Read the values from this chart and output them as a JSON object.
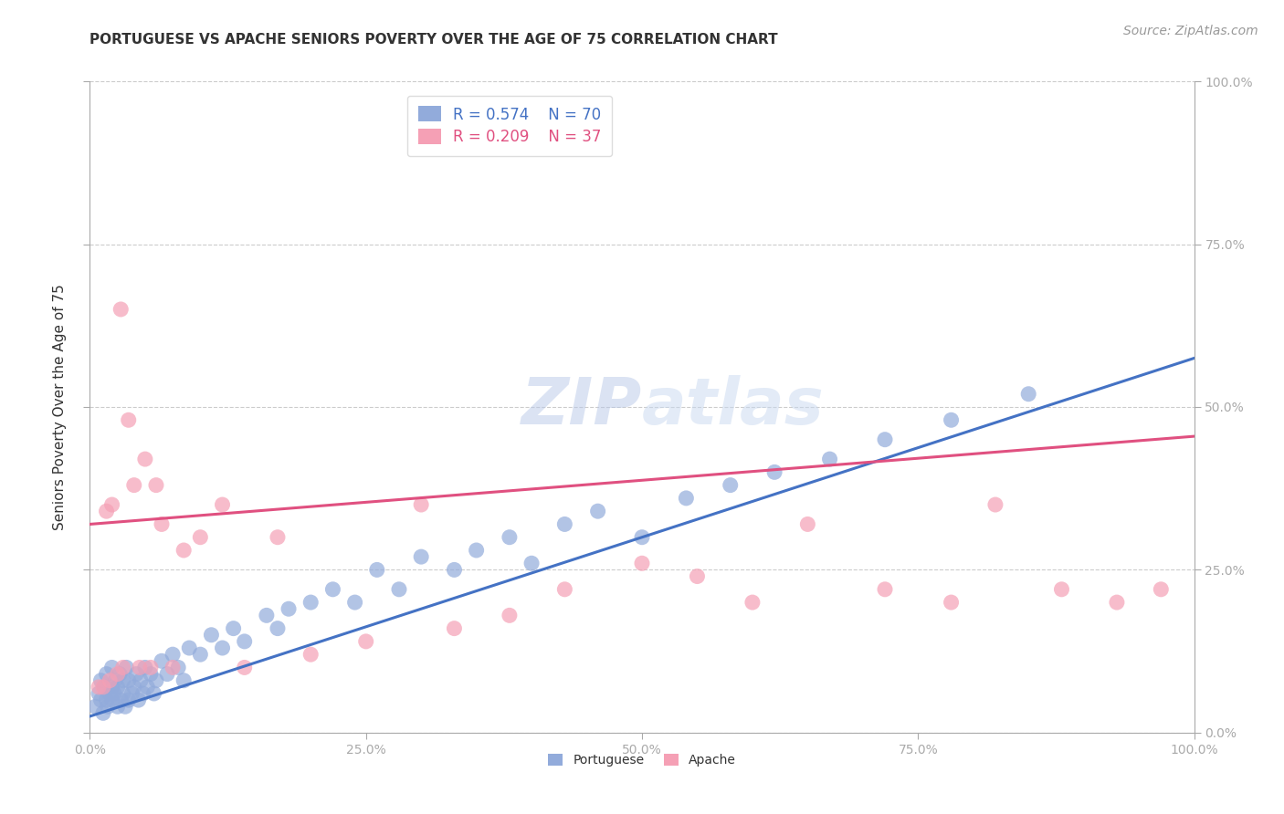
{
  "title": "PORTUGUESE VS APACHE SENIORS POVERTY OVER THE AGE OF 75 CORRELATION CHART",
  "source": "Source: ZipAtlas.com",
  "ylabel": "Seniors Poverty Over the Age of 75",
  "xlabel": "",
  "portuguese_R": 0.574,
  "portuguese_N": 70,
  "apache_R": 0.209,
  "apache_N": 37,
  "portuguese_color": "#92ABDB",
  "apache_color": "#F5A0B5",
  "portuguese_line_color": "#4472C4",
  "apache_line_color": "#E05080",
  "watermark_color": "#D0DCF0",
  "xlim": [
    0.0,
    1.0
  ],
  "ylim": [
    0.0,
    1.0
  ],
  "xticks": [
    0.0,
    0.25,
    0.5,
    0.75,
    1.0
  ],
  "yticks": [
    0.0,
    0.25,
    0.5,
    0.75,
    1.0
  ],
  "xticklabels": [
    "0.0%",
    "25.0%",
    "50.0%",
    "75.0%",
    "100.0%"
  ],
  "yticklabels": [
    "0.0%",
    "25.0%",
    "50.0%",
    "75.0%",
    "100.0%"
  ],
  "grid_color": "#CCCCCC",
  "background_color": "#FFFFFF",
  "title_fontsize": 11,
  "axis_label_fontsize": 11,
  "tick_fontsize": 10,
  "legend_fontsize": 12,
  "source_fontsize": 10,
  "portuguese_x": [
    0.005,
    0.008,
    0.01,
    0.01,
    0.012,
    0.013,
    0.015,
    0.015,
    0.016,
    0.018,
    0.02,
    0.02,
    0.02,
    0.022,
    0.023,
    0.025,
    0.025,
    0.027,
    0.028,
    0.03,
    0.03,
    0.032,
    0.033,
    0.035,
    0.035,
    0.038,
    0.04,
    0.042,
    0.044,
    0.046,
    0.048,
    0.05,
    0.052,
    0.055,
    0.058,
    0.06,
    0.065,
    0.07,
    0.075,
    0.08,
    0.085,
    0.09,
    0.1,
    0.11,
    0.12,
    0.13,
    0.14,
    0.16,
    0.17,
    0.18,
    0.2,
    0.22,
    0.24,
    0.26,
    0.28,
    0.3,
    0.33,
    0.35,
    0.38,
    0.4,
    0.43,
    0.46,
    0.5,
    0.54,
    0.58,
    0.62,
    0.67,
    0.72,
    0.78,
    0.85
  ],
  "portuguese_y": [
    0.04,
    0.06,
    0.05,
    0.08,
    0.03,
    0.07,
    0.05,
    0.09,
    0.04,
    0.06,
    0.05,
    0.07,
    0.1,
    0.06,
    0.08,
    0.04,
    0.07,
    0.09,
    0.05,
    0.06,
    0.08,
    0.04,
    0.1,
    0.05,
    0.08,
    0.06,
    0.07,
    0.09,
    0.05,
    0.08,
    0.06,
    0.1,
    0.07,
    0.09,
    0.06,
    0.08,
    0.11,
    0.09,
    0.12,
    0.1,
    0.08,
    0.13,
    0.12,
    0.15,
    0.13,
    0.16,
    0.14,
    0.18,
    0.16,
    0.19,
    0.2,
    0.22,
    0.2,
    0.25,
    0.22,
    0.27,
    0.25,
    0.28,
    0.3,
    0.26,
    0.32,
    0.34,
    0.3,
    0.36,
    0.38,
    0.4,
    0.42,
    0.45,
    0.48,
    0.52
  ],
  "apache_x": [
    0.008,
    0.012,
    0.015,
    0.018,
    0.02,
    0.025,
    0.028,
    0.03,
    0.035,
    0.04,
    0.045,
    0.05,
    0.055,
    0.06,
    0.065,
    0.075,
    0.085,
    0.1,
    0.12,
    0.14,
    0.17,
    0.2,
    0.25,
    0.3,
    0.33,
    0.38,
    0.43,
    0.5,
    0.55,
    0.6,
    0.65,
    0.72,
    0.78,
    0.82,
    0.88,
    0.93,
    0.97
  ],
  "apache_y": [
    0.07,
    0.07,
    0.34,
    0.08,
    0.35,
    0.09,
    0.65,
    0.1,
    0.48,
    0.38,
    0.1,
    0.42,
    0.1,
    0.38,
    0.32,
    0.1,
    0.28,
    0.3,
    0.35,
    0.1,
    0.3,
    0.12,
    0.14,
    0.35,
    0.16,
    0.18,
    0.22,
    0.26,
    0.24,
    0.2,
    0.32,
    0.22,
    0.2,
    0.35,
    0.22,
    0.2,
    0.22
  ],
  "port_line_x0": 0.0,
  "port_line_y0": 0.025,
  "port_line_x1": 1.0,
  "port_line_y1": 0.575,
  "apach_line_x0": 0.0,
  "apach_line_y0": 0.32,
  "apach_line_x1": 1.0,
  "apach_line_y1": 0.455
}
